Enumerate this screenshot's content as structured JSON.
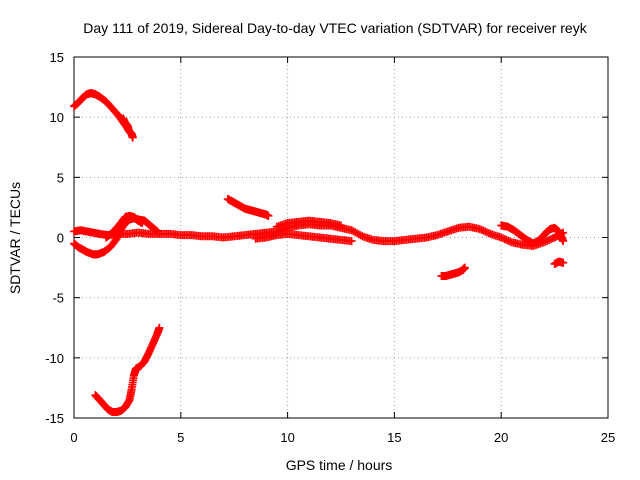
{
  "chart_data": {
    "type": "scatter",
    "title": "Day 111 of 2019, Sidereal Day-to-day VTEC variation (SDTVAR) for receiver reyk",
    "xlabel": "GPS time / hours",
    "ylabel": "SDTVAR / TECUs",
    "xlim": [
      0,
      25
    ],
    "ylim": [
      -15,
      15
    ],
    "xticks": [
      0,
      5,
      10,
      15,
      20,
      25
    ],
    "yticks": [
      -15,
      -10,
      -5,
      0,
      5,
      10,
      15
    ],
    "grid": true,
    "marker": "+",
    "color": "#ff0000",
    "series": [
      {
        "name": "arc-top",
        "points": [
          [
            0.0,
            10.9
          ],
          [
            0.2,
            11.2
          ],
          [
            0.4,
            11.6
          ],
          [
            0.6,
            11.9
          ],
          [
            0.8,
            12.0
          ],
          [
            1.0,
            11.9
          ],
          [
            1.2,
            11.7
          ],
          [
            1.5,
            11.3
          ],
          [
            1.8,
            10.7
          ],
          [
            2.1,
            10.1
          ],
          [
            2.3,
            9.6
          ],
          [
            2.5,
            9.1
          ],
          [
            2.6,
            8.8
          ],
          [
            2.7,
            8.6
          ],
          [
            2.75,
            8.3
          ]
        ]
      },
      {
        "name": "arc-top-2",
        "points": [
          [
            2.3,
            9.9
          ],
          [
            2.4,
            9.5
          ],
          [
            2.5,
            9.3
          ],
          [
            2.55,
            9.0
          ]
        ]
      },
      {
        "name": "arc-bottom",
        "points": [
          [
            1.0,
            -13.1
          ],
          [
            1.2,
            -13.5
          ],
          [
            1.4,
            -13.9
          ],
          [
            1.6,
            -14.3
          ],
          [
            1.8,
            -14.5
          ],
          [
            2.0,
            -14.5
          ],
          [
            2.2,
            -14.4
          ],
          [
            2.4,
            -14.1
          ],
          [
            2.6,
            -13.5
          ],
          [
            2.7,
            -12.6
          ],
          [
            2.8,
            -11.5
          ],
          [
            2.9,
            -10.9
          ],
          [
            3.1,
            -10.7
          ],
          [
            3.3,
            -10.3
          ],
          [
            3.5,
            -9.6
          ],
          [
            3.7,
            -8.8
          ],
          [
            3.9,
            -8.0
          ],
          [
            4.0,
            -7.5
          ]
        ]
      },
      {
        "name": "central-band",
        "points": [
          [
            0.0,
            0.5
          ],
          [
            0.3,
            0.6
          ],
          [
            0.6,
            0.5
          ],
          [
            0.9,
            0.4
          ],
          [
            1.2,
            0.3
          ],
          [
            1.6,
            0.2
          ],
          [
            2.0,
            0.3
          ],
          [
            2.5,
            0.3
          ],
          [
            3.0,
            0.4
          ],
          [
            3.5,
            0.3
          ],
          [
            4.0,
            0.3
          ],
          [
            4.5,
            0.3
          ],
          [
            5.0,
            0.2
          ],
          [
            5.5,
            0.2
          ],
          [
            6.0,
            0.1
          ],
          [
            6.5,
            0.1
          ],
          [
            7.0,
            0.0
          ],
          [
            7.5,
            0.1
          ],
          [
            8.0,
            0.2
          ],
          [
            8.5,
            0.3
          ],
          [
            9.0,
            0.4
          ],
          [
            9.5,
            0.5
          ],
          [
            10.0,
            0.8
          ],
          [
            10.5,
            1.0
          ],
          [
            11.0,
            1.1
          ],
          [
            11.5,
            1.0
          ],
          [
            12.0,
            1.0
          ],
          [
            12.5,
            0.8
          ],
          [
            13.0,
            0.6
          ],
          [
            13.5,
            0.1
          ],
          [
            14.0,
            -0.2
          ],
          [
            14.5,
            -0.3
          ],
          [
            15.0,
            -0.3
          ],
          [
            15.5,
            -0.2
          ],
          [
            16.0,
            -0.1
          ],
          [
            16.5,
            0.0
          ],
          [
            17.0,
            0.2
          ],
          [
            17.5,
            0.5
          ],
          [
            18.0,
            0.8
          ],
          [
            18.5,
            0.9
          ],
          [
            19.0,
            0.7
          ],
          [
            19.5,
            0.3
          ],
          [
            20.0,
            0.0
          ],
          [
            20.5,
            -0.4
          ],
          [
            21.0,
            -0.6
          ],
          [
            21.5,
            -0.7
          ],
          [
            22.0,
            -0.4
          ],
          [
            22.5,
            0.0
          ],
          [
            22.9,
            0.4
          ]
        ]
      },
      {
        "name": "central-band-upper",
        "points": [
          [
            9.5,
            0.9
          ],
          [
            10.0,
            1.2
          ],
          [
            10.5,
            1.3
          ],
          [
            11.0,
            1.4
          ],
          [
            11.5,
            1.3
          ],
          [
            12.0,
            1.2
          ],
          [
            12.5,
            1.0
          ]
        ]
      },
      {
        "name": "central-band-lower",
        "points": [
          [
            8.5,
            -0.1
          ],
          [
            9.0,
            0.0
          ],
          [
            9.5,
            0.2
          ],
          [
            10.0,
            0.3
          ],
          [
            10.5,
            0.2
          ],
          [
            11.0,
            0.1
          ],
          [
            11.5,
            0.0
          ],
          [
            12.0,
            -0.1
          ],
          [
            12.5,
            -0.2
          ],
          [
            13.0,
            -0.3
          ]
        ]
      },
      {
        "name": "early-dip",
        "points": [
          [
            0.0,
            -0.5
          ],
          [
            0.2,
            -0.8
          ],
          [
            0.4,
            -1.0
          ],
          [
            0.6,
            -1.2
          ],
          [
            0.9,
            -1.4
          ],
          [
            1.1,
            -1.4
          ],
          [
            1.4,
            -1.2
          ],
          [
            1.7,
            -0.8
          ],
          [
            2.0,
            -0.1
          ],
          [
            2.2,
            0.7
          ],
          [
            2.4,
            1.2
          ],
          [
            2.6,
            1.5
          ],
          [
            2.8,
            1.6
          ],
          [
            3.0,
            1.5
          ],
          [
            3.3,
            1.4
          ],
          [
            3.5,
            1.1
          ],
          [
            3.7,
            0.8
          ],
          [
            3.9,
            0.5
          ]
        ]
      },
      {
        "name": "early-dip-2",
        "points": [
          [
            1.5,
            0.0
          ],
          [
            1.8,
            0.4
          ],
          [
            2.1,
            1.0
          ],
          [
            2.4,
            1.7
          ],
          [
            2.6,
            1.8
          ],
          [
            2.8,
            1.7
          ],
          [
            3.0,
            1.4
          ],
          [
            3.2,
            1.2
          ]
        ]
      },
      {
        "name": "mid-arc",
        "points": [
          [
            7.2,
            3.2
          ],
          [
            7.4,
            3.0
          ],
          [
            7.6,
            2.8
          ],
          [
            7.8,
            2.6
          ],
          [
            8.0,
            2.4
          ],
          [
            8.2,
            2.3
          ],
          [
            8.4,
            2.2
          ],
          [
            8.6,
            2.1
          ],
          [
            8.8,
            2.0
          ],
          [
            9.0,
            1.9
          ],
          [
            9.1,
            1.8
          ]
        ]
      },
      {
        "name": "late-loop",
        "points": [
          [
            20.0,
            1.0
          ],
          [
            20.3,
            0.9
          ],
          [
            20.6,
            0.6
          ],
          [
            20.9,
            0.2
          ],
          [
            21.2,
            -0.2
          ],
          [
            21.5,
            -0.5
          ],
          [
            21.8,
            -0.2
          ],
          [
            22.1,
            0.4
          ],
          [
            22.3,
            0.7
          ],
          [
            22.5,
            0.8
          ],
          [
            22.7,
            0.5
          ],
          [
            22.8,
            0.1
          ],
          [
            22.9,
            -0.3
          ]
        ]
      },
      {
        "name": "late-short-1",
        "points": [
          [
            17.2,
            -3.2
          ],
          [
            17.4,
            -3.2
          ],
          [
            17.6,
            -3.1
          ],
          [
            17.8,
            -3.0
          ],
          [
            18.0,
            -2.9
          ],
          [
            18.2,
            -2.7
          ],
          [
            18.3,
            -2.5
          ]
        ]
      },
      {
        "name": "late-short-2",
        "points": [
          [
            22.5,
            -2.2
          ],
          [
            22.7,
            -2.0
          ],
          [
            22.9,
            -2.1
          ]
        ]
      }
    ]
  }
}
